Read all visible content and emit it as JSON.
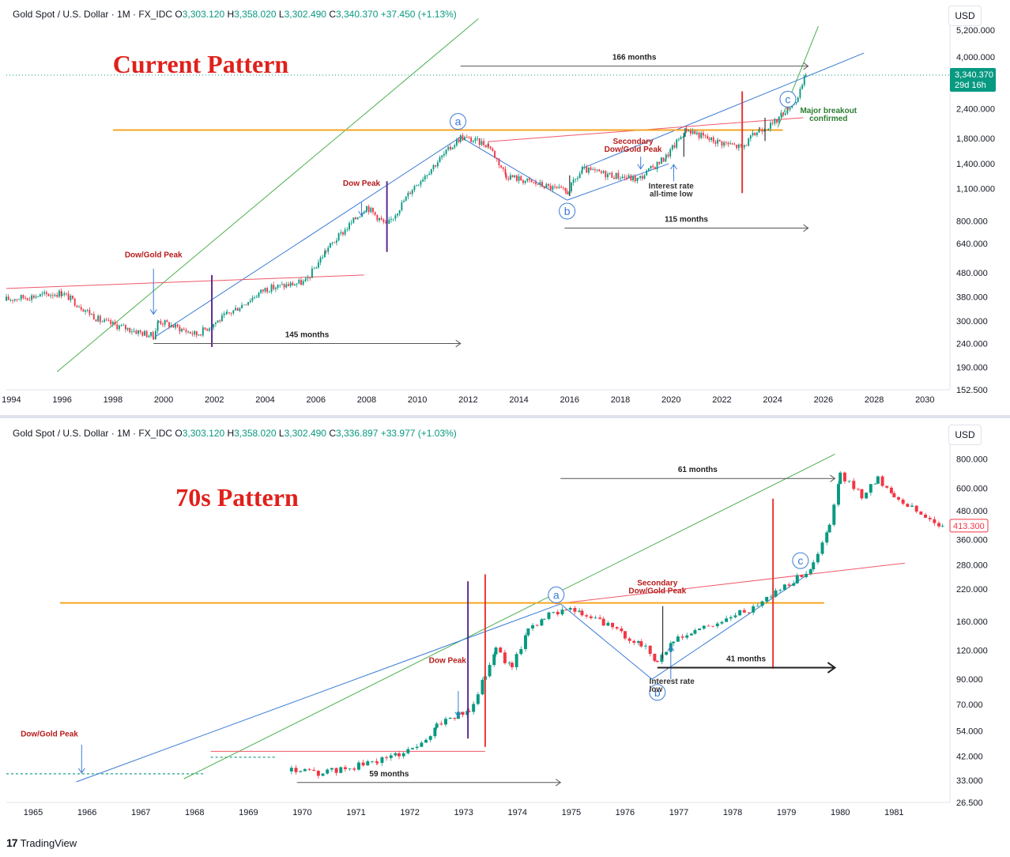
{
  "colors": {
    "up": "#089981",
    "down": "#f23645",
    "green_line": "#4caf50",
    "blue_line": "#3a7bd5",
    "red_line": "#f0586a",
    "orange_line": "#f5a623",
    "purple": "#5b2c8f",
    "vred": "#e53935",
    "annot_red": "#b71c1c",
    "annot_green": "#2e7d32",
    "title_red": "#e0201b"
  },
  "footer": {
    "brand": "TradingView"
  },
  "chart_data": [
    {
      "type": "candlestick",
      "symbol_header": {
        "name": "Gold Spot / U.S. Dollar · 1M · FX_IDC",
        "o_label": "O",
        "o": "3,303.120",
        "h_label": "H",
        "h": "3,358.020",
        "l_label": "L",
        "l": "3,302.490",
        "c_label": "C",
        "c": "3,340.370",
        "change": "+37.450 (+1.13%)"
      },
      "currency": "USD",
      "title": "Current Pattern",
      "log_scale": true,
      "ylim": [
        152.5,
        5200
      ],
      "xlim": [
        1993.8,
        2030.8
      ],
      "y_ticks": [
        {
          "v": 5200,
          "label": "5,200.000"
        },
        {
          "v": 4000,
          "label": "4,000.000"
        },
        {
          "v": 2400,
          "label": "2,400.000"
        },
        {
          "v": 1800,
          "label": "1,800.000"
        },
        {
          "v": 1400,
          "label": "1,400.000"
        },
        {
          "v": 1100,
          "label": "1,100.000"
        },
        {
          "v": 800,
          "label": "800.000"
        },
        {
          "v": 640,
          "label": "640.000"
        },
        {
          "v": 480,
          "label": "480.000"
        },
        {
          "v": 380,
          "label": "380.000"
        },
        {
          "v": 300,
          "label": "300.000"
        },
        {
          "v": 240,
          "label": "240.000"
        },
        {
          "v": 190,
          "label": "190.000"
        },
        {
          "v": 152.5,
          "label": "152.500"
        }
      ],
      "x_ticks": [
        "1994",
        "1996",
        "1998",
        "2000",
        "2002",
        "2004",
        "2006",
        "2008",
        "2010",
        "2012",
        "2014",
        "2016",
        "2018",
        "2020",
        "2022",
        "2024",
        "2026",
        "2028",
        "2030"
      ],
      "x_tick_values": [
        1994,
        1996,
        1998,
        2000,
        2002,
        2004,
        2006,
        2008,
        2010,
        2012,
        2014,
        2016,
        2018,
        2020,
        2022,
        2024,
        2026,
        2028,
        2030
      ],
      "price_key_points": [
        [
          1993.8,
          370
        ],
        [
          1996.0,
          395
        ],
        [
          1997.5,
          300
        ],
        [
          1999.6,
          258
        ],
        [
          1999.8,
          300
        ],
        [
          2001.3,
          262
        ],
        [
          2002.5,
          318
        ],
        [
          2004.0,
          410
        ],
        [
          2005.6,
          440
        ],
        [
          2006.4,
          600
        ],
        [
          2008.0,
          920
        ],
        [
          2008.8,
          760
        ],
        [
          2009.8,
          1100
        ],
        [
          2011.7,
          1820
        ],
        [
          2012.8,
          1690
        ],
        [
          2013.5,
          1250
        ],
        [
          2015.9,
          1060
        ],
        [
          2016.5,
          1320
        ],
        [
          2018.7,
          1200
        ],
        [
          2019.8,
          1500
        ],
        [
          2020.6,
          1970
        ],
        [
          2021.5,
          1780
        ],
        [
          2022.8,
          1640
        ],
        [
          2023.5,
          1980
        ],
        [
          2024.0,
          2050
        ],
        [
          2024.6,
          2450
        ],
        [
          2025.0,
          2650
        ],
        [
          2025.3,
          3340
        ]
      ],
      "last_price": {
        "value": 3340.37,
        "label": "3,340.370",
        "countdown": "29d 16h"
      },
      "lines": [
        {
          "kind": "green",
          "p1": [
            1995.8,
            182
          ],
          "p2": [
            2012.4,
            5800
          ]
        },
        {
          "kind": "green",
          "p1": [
            2024.2,
            2000
          ],
          "p2": [
            2025.8,
            5400
          ]
        },
        {
          "kind": "blue",
          "p1": [
            1999.7,
            258
          ],
          "p2": [
            2011.7,
            1820
          ]
        },
        {
          "kind": "blue",
          "p1": [
            2011.7,
            1820
          ],
          "p2": [
            2015.9,
            980
          ]
        },
        {
          "kind": "blue",
          "p1": [
            2015.9,
            980
          ],
          "p2": [
            2019.9,
            1400
          ]
        },
        {
          "kind": "blue",
          "p1": [
            2016.5,
            1340
          ],
          "p2": [
            2027.6,
            4150
          ]
        },
        {
          "kind": "red",
          "p1": [
            1993.8,
            412
          ],
          "p2": [
            2007.9,
            470
          ]
        },
        {
          "kind": "red",
          "p1": [
            2012.8,
            1740
          ],
          "p2": [
            2025.2,
            2200
          ]
        },
        {
          "kind": "orange",
          "p1": [
            1998.0,
            1950
          ],
          "p2": [
            2024.4,
            1950
          ]
        }
      ],
      "vlines": [
        {
          "kind": "purple",
          "x": 2001.9,
          "y1": 232,
          "y2": 470
        },
        {
          "kind": "purple",
          "x": 2008.8,
          "y1": 590,
          "y2": 1180
        },
        {
          "kind": "vred",
          "x": 2022.8,
          "y1": 1050,
          "y2": 2850
        },
        {
          "kind": "dark",
          "x": 2016.0,
          "y1": 1020,
          "y2": 1250
        },
        {
          "kind": "dark",
          "x": 2020.5,
          "y1": 1500,
          "y2": 1900
        },
        {
          "kind": "dark",
          "x": 2023.7,
          "y1": 1750,
          "y2": 2200
        }
      ],
      "arrows_down": [
        {
          "x": 1999.6,
          "from": 500,
          "to": 320
        },
        {
          "x": 2007.8,
          "from": 960,
          "to": 840
        },
        {
          "x": 2018.8,
          "from": 1500,
          "to": 1330
        }
      ],
      "arrows_up": [
        {
          "x": 2020.1,
          "from": 1180,
          "to": 1390
        }
      ],
      "measure_arrows": [
        {
          "x1": 2011.7,
          "x2": 2025.4,
          "y": 3650,
          "label": "166 months"
        },
        {
          "x1": 2015.8,
          "x2": 2025.4,
          "y": 745,
          "label": "115 months"
        },
        {
          "x1": 1999.6,
          "x2": 2011.7,
          "y": 240,
          "label": "145 months"
        }
      ],
      "wave_labels": [
        {
          "t": "a",
          "x": 2011.6,
          "y": 2120
        },
        {
          "t": "b",
          "x": 2015.9,
          "y": 880
        },
        {
          "t": "c",
          "x": 2024.6,
          "y": 2640
        }
      ],
      "annotations": [
        {
          "text": "Dow/Gold Peak",
          "x": 1999.6,
          "y": 560,
          "color": "annot_red",
          "lines": [
            "Dow/Gold Peak"
          ]
        },
        {
          "text": "Dow Peak",
          "x": 2007.8,
          "y": 1130,
          "color": "annot_red",
          "lines": [
            "Dow Peak"
          ]
        },
        {
          "text": "Secondary Dow/Gold Peak",
          "x": 2018.5,
          "y": 1700,
          "color": "annot_red",
          "lines": [
            "Secondary",
            "Dow/Gold Peak"
          ]
        },
        {
          "text": "Interest rate all-time low",
          "x": 2020.0,
          "y": 1100,
          "color": "dark",
          "lines": [
            "Interest rate",
            "all-time low"
          ]
        },
        {
          "text": "Major breakout confirmed",
          "x": 2026.2,
          "y": 2300,
          "color": "annot_green",
          "lines": [
            "Major breakout",
            "confirmed"
          ]
        }
      ]
    },
    {
      "type": "candlestick",
      "symbol_header": {
        "name": "Gold Spot / U.S. Dollar · 1M · FX_IDC",
        "o_label": "O",
        "o": "3,303.120",
        "h_label": "H",
        "h": "3,358.020",
        "l_label": "L",
        "l": "3,302.490",
        "c_label": "C",
        "c": "3,336.897",
        "change": "+33.977 (+1.03%)"
      },
      "currency": "USD",
      "title": "70s Pattern",
      "log_scale": true,
      "ylim": [
        26.5,
        870
      ],
      "xlim": [
        1964.5,
        1981.95
      ],
      "y_ticks": [
        {
          "v": 800,
          "label": "800.000"
        },
        {
          "v": 600,
          "label": "600.000"
        },
        {
          "v": 480,
          "label": "480.000"
        },
        {
          "v": 360,
          "label": "360.000"
        },
        {
          "v": 280,
          "label": "280.000"
        },
        {
          "v": 220,
          "label": "220.000"
        },
        {
          "v": 160,
          "label": "160.000"
        },
        {
          "v": 120,
          "label": "120.000"
        },
        {
          "v": 90,
          "label": "90.000"
        },
        {
          "v": 70,
          "label": "70.000"
        },
        {
          "v": 54,
          "label": "54.000"
        },
        {
          "v": 42,
          "label": "42.000"
        },
        {
          "v": 33,
          "label": "33.000"
        },
        {
          "v": 26.5,
          "label": "26.500"
        }
      ],
      "x_ticks": [
        "1965",
        "1966",
        "1967",
        "1968",
        "1969",
        "1970",
        "1971",
        "1972",
        "1973",
        "1974",
        "1975",
        "1976",
        "1977",
        "1978",
        "1979",
        "1980",
        "1981"
      ],
      "x_tick_values": [
        1965,
        1966,
        1967,
        1968,
        1969,
        1970,
        1971,
        1972,
        1973,
        1974,
        1975,
        1976,
        1977,
        1978,
        1979,
        1980,
        1981
      ],
      "flat_segments": [
        {
          "x1": 1964.5,
          "x2": 1968.2,
          "y": 35.2
        },
        {
          "x1": 1968.3,
          "x2": 1969.5,
          "y": 41.5
        }
      ],
      "price_key_points": [
        [
          1969.8,
          36.5
        ],
        [
          1970.3,
          35.3
        ],
        [
          1970.8,
          37.0
        ],
        [
          1971.4,
          40.0
        ],
        [
          1971.8,
          43.0
        ],
        [
          1972.3,
          48
        ],
        [
          1972.5,
          58
        ],
        [
          1972.9,
          63
        ],
        [
          1973.1,
          65
        ],
        [
          1973.4,
          95
        ],
        [
          1973.6,
          122
        ],
        [
          1973.9,
          100
        ],
        [
          1974.2,
          150
        ],
        [
          1974.5,
          165
        ],
        [
          1974.9,
          185
        ],
        [
          1975.2,
          170
        ],
        [
          1975.6,
          158
        ],
        [
          1976.0,
          138
        ],
        [
          1976.3,
          128
        ],
        [
          1976.6,
          108
        ],
        [
          1976.9,
          130
        ],
        [
          1977.3,
          145
        ],
        [
          1977.8,
          160
        ],
        [
          1978.3,
          180
        ],
        [
          1978.8,
          215
        ],
        [
          1979.2,
          245
        ],
        [
          1979.5,
          280
        ],
        [
          1979.8,
          410
        ],
        [
          1980.0,
          680
        ],
        [
          1980.4,
          560
        ],
        [
          1980.7,
          660
        ],
        [
          1981.0,
          560
        ],
        [
          1981.5,
          460
        ],
        [
          1981.9,
          413
        ]
      ],
      "last_price": {
        "value": 413.3,
        "label": "413.300"
      },
      "lines": [
        {
          "kind": "green",
          "p1": [
            1967.8,
            33.5
          ],
          "p2": [
            1979.9,
            840
          ]
        },
        {
          "kind": "blue",
          "p1": [
            1965.8,
            32.5
          ],
          "p2": [
            1974.8,
            190
          ]
        },
        {
          "kind": "blue",
          "p1": [
            1974.8,
            190
          ],
          "p2": [
            1976.5,
            90
          ]
        },
        {
          "kind": "blue",
          "p1": [
            1976.5,
            90
          ],
          "p2": [
            1979.4,
            255
          ]
        },
        {
          "kind": "red",
          "p1": [
            1968.3,
            44
          ],
          "p2": [
            1973.4,
            44
          ]
        },
        {
          "kind": "red",
          "p1": [
            1974.7,
            190
          ],
          "p2": [
            1981.2,
            285
          ]
        },
        {
          "kind": "orange",
          "p1": [
            1965.5,
            192
          ],
          "p2": [
            1979.7,
            192
          ]
        }
      ],
      "vlines": [
        {
          "kind": "purple",
          "x": 1973.08,
          "y1": 50,
          "y2": 238
        },
        {
          "kind": "vred",
          "x": 1973.4,
          "y1": 46,
          "y2": 255
        },
        {
          "kind": "vred",
          "x": 1978.75,
          "y1": 100,
          "y2": 540
        },
        {
          "kind": "dark",
          "x": 1976.7,
          "y1": 110,
          "y2": 186
        }
      ],
      "arrows_down": [
        {
          "x": 1965.9,
          "from": 47,
          "to": 35.5
        },
        {
          "x": 1972.9,
          "from": 80,
          "to": 62
        }
      ],
      "arrows_up": [
        {
          "x": 1976.85,
          "from": 90,
          "to": 125
        }
      ],
      "measure_arrows": [
        {
          "x1": 1974.8,
          "x2": 1979.9,
          "y": 660,
          "label": "61 months",
          "thin": true
        },
        {
          "x1": 1969.9,
          "x2": 1974.8,
          "y": 32.3,
          "label": "59 months",
          "thin": true
        },
        {
          "x1": 1976.6,
          "x2": 1979.9,
          "y": 101,
          "label": "41 months",
          "thin": false
        }
      ],
      "wave_labels": [
        {
          "t": "a",
          "x": 1974.72,
          "y": 208
        },
        {
          "t": "b",
          "x": 1976.6,
          "y": 79
        },
        {
          "t": "c",
          "x": 1979.26,
          "y": 292
        }
      ],
      "annotations": [
        {
          "text": "Dow/Gold Peak",
          "x": 1965.3,
          "y": 51,
          "color": "annot_red",
          "lines": [
            "Dow/Gold Peak"
          ]
        },
        {
          "text": "Dow Peak",
          "x": 1972.7,
          "y": 106,
          "color": "annot_red",
          "lines": [
            "Dow Peak"
          ]
        },
        {
          "text": "Secondary Dow/Gold Peak",
          "x": 1976.6,
          "y": 228,
          "color": "annot_red",
          "lines": [
            "Secondary",
            "Dow/Gold Peak"
          ]
        },
        {
          "text": "Interest rate low",
          "x": 1976.45,
          "y": 86,
          "color": "dark",
          "lines": [
            "Interest rate",
            "low"
          ],
          "align": "start"
        }
      ]
    }
  ]
}
